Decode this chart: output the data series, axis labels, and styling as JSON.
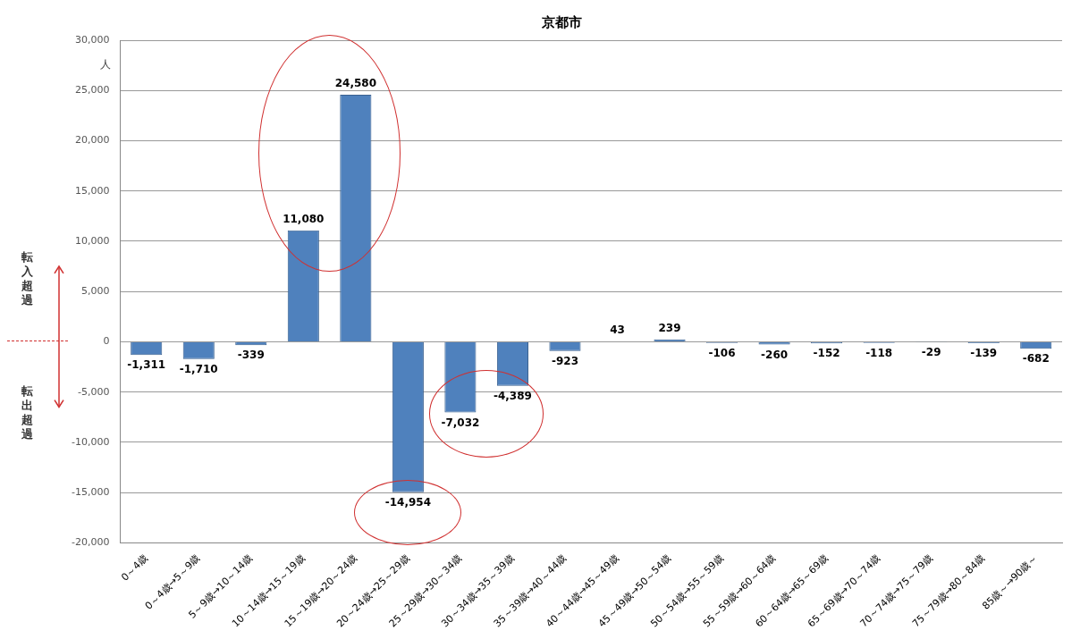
{
  "chart_data": {
    "type": "bar",
    "title": "京都市",
    "ylabel": "人",
    "categories": [
      "0～4歳",
      "0～4歳→5～9歳",
      "5～9歳→10～14歳",
      "10～14歳→15～19歳",
      "15～19歳→20～24歳",
      "20～24歳→25～29歳",
      "25～29歳→30～34歳",
      "30～34歳→35～39歳",
      "35～39歳→40～44歳",
      "40～44歳→45～49歳",
      "45～49歳→50～54歳",
      "50～54歳→55～59歳",
      "55～59歳→60～64歳",
      "60～64歳→65～69歳",
      "65～69歳→70～74歳",
      "70～74歳→75～79歳",
      "75～79歳→80～84歳",
      "85歳～→90歳～"
    ],
    "values": [
      -1311,
      -1710,
      -339,
      11080,
      24580,
      -14954,
      -7032,
      -4389,
      -923,
      43,
      239,
      -106,
      -260,
      -152,
      -118,
      -29,
      -139,
      -682
    ],
    "value_labels": [
      "-1,311",
      "-1,710",
      "-339",
      "11,080",
      "24,580",
      "-14,954",
      "-7,032",
      "-4,389",
      "-923",
      "43",
      "239",
      "-106",
      "-260",
      "-152",
      "-118",
      "-29",
      "-139",
      "-682"
    ],
    "color": "#4f81bd",
    "ylim": [
      -20000,
      30000
    ],
    "yticks": [
      {
        "value": -20000,
        "label": "-20,000"
      },
      {
        "value": -15000,
        "label": "-15,000"
      },
      {
        "value": -10000,
        "label": "-10,000"
      },
      {
        "value": -5000,
        "label": "-5,000"
      },
      0,
      {
        "value": 5000,
        "label": "5,000"
      },
      {
        "value": 10000,
        "label": "10,000"
      },
      {
        "value": 15000,
        "label": "15,000"
      },
      {
        "value": 20000,
        "label": "20,000"
      },
      {
        "value": 25000,
        "label": "25,000"
      },
      {
        "value": 30000,
        "label": "30,000"
      }
    ],
    "grid": "y",
    "legend": false,
    "annotations": [
      "転入超過",
      "転出超過"
    ]
  }
}
